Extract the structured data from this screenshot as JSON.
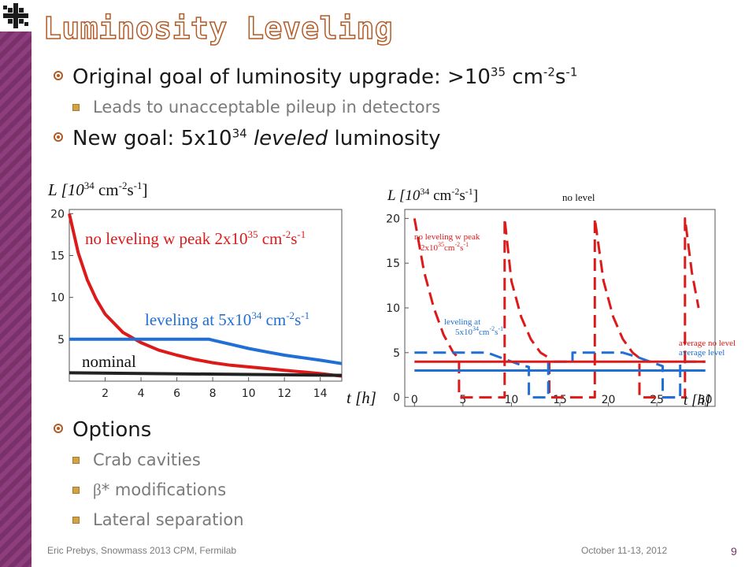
{
  "slide": {
    "title": "Luminosity Leveling",
    "page_number": "9",
    "footer_left": "Eric Prebys, Snowmass 2013 CPM, Fermilab",
    "footer_date": "October 11-13, 2012"
  },
  "bullets": {
    "b1": {
      "pre": "Original goal of luminosity upgrade: >10",
      "sup1": "35",
      "mid": " cm",
      "sup2": "-2",
      "mid2": "s",
      "sup3": "-1"
    },
    "b1_sub": "Leads to unacceptable pileup in detectors",
    "b2": {
      "pre": "New goal: 5x10",
      "sup": "34",
      "em": "leveled",
      "post": " luminosity"
    }
  },
  "options": {
    "heading": "Options",
    "items": [
      "Crab cavities",
      "* modifications",
      "Lateral separation"
    ],
    "beta_symbol": "β"
  },
  "colors": {
    "red": "#dd1a1a",
    "blue": "#1f6fd6",
    "black": "#222222",
    "accent": "#b35a25",
    "sidebar": "#7a3069"
  },
  "chart_data": [
    {
      "type": "line",
      "ylabel": {
        "pre": "L [10",
        "sup1": "34",
        "mid": " cm",
        "sup2": "-2",
        "mid2": "s",
        "sup3": "-1",
        "post": "]"
      },
      "xlabel": "t [h]",
      "xlim": [
        0,
        15.2
      ],
      "ylim": [
        0,
        20.5
      ],
      "xticks": [
        2,
        4,
        6,
        8,
        10,
        12,
        14
      ],
      "yticks": [
        5,
        10,
        15,
        20
      ],
      "series": [
        {
          "name": "no leveling w peak 2x10^35 cm^-2s^-1",
          "color": "#dd1a1a",
          "x": [
            0,
            0.5,
            1,
            1.5,
            2,
            3,
            4,
            5,
            6,
            7,
            8,
            9,
            10,
            11,
            12,
            13,
            14,
            15.2
          ],
          "y": [
            20,
            15.3,
            12.1,
            9.8,
            8.0,
            5.8,
            4.6,
            3.7,
            3.1,
            2.6,
            2.2,
            1.9,
            1.7,
            1.5,
            1.3,
            1.1,
            0.9,
            0.6
          ]
        },
        {
          "name": "leveling at 5x10^34 cm^-2s^-1",
          "color": "#1f6fd6",
          "x": [
            0,
            7.8,
            8,
            9,
            10,
            11,
            12,
            13,
            14,
            15.2
          ],
          "y": [
            5,
            5,
            4.9,
            4.4,
            3.9,
            3.5,
            3.1,
            2.8,
            2.5,
            2.1
          ]
        },
        {
          "name": "nominal",
          "color": "#222222",
          "x": [
            0,
            15.2
          ],
          "y": [
            1.0,
            0.7
          ]
        }
      ],
      "annotations": {
        "red": {
          "pre": "no leveling w peak 2x10",
          "sup": "35",
          "post": " cm",
          "sup2": "-2",
          "post2": "s",
          "sup3": "-1"
        },
        "blue": {
          "pre": "leveling at 5x10",
          "sup": "34",
          "post": " cm",
          "sup2": "-2",
          "post2": "s",
          "sup3": "-1"
        },
        "black": "nominal"
      }
    },
    {
      "type": "line",
      "ylabel": {
        "pre": "L [10",
        "sup1": "34",
        "mid": " cm",
        "sup2": "-2",
        "mid2": "s",
        "sup3": "-1",
        "post": "]"
      },
      "xlabel": "t [h]",
      "xlim": [
        -1,
        31
      ],
      "ylim": [
        -1,
        21
      ],
      "xticks": [
        0,
        5,
        10,
        15,
        20,
        25,
        30
      ],
      "yticks": [
        0,
        5,
        10,
        15,
        20
      ],
      "top_label": "no level",
      "series": [
        {
          "name": "no leveling w peak",
          "color": "#dd1a1a",
          "dashed": true,
          "x": [
            0,
            1,
            2,
            3,
            4,
            4.6,
            4.6,
            9.3,
            9.3,
            10,
            11,
            12,
            13,
            13.9,
            13.9,
            18.6,
            18.6,
            19.5,
            20.5,
            21.5,
            22.5,
            23.2,
            23.2,
            27.9,
            27.9,
            28.6,
            29.3
          ],
          "y": [
            20,
            14,
            10,
            7,
            5,
            4.4,
            0,
            0,
            20,
            13,
            9,
            6.5,
            5,
            4.4,
            0,
            0,
            20,
            13,
            9,
            6.5,
            5,
            4.4,
            0,
            0,
            20,
            14,
            10
          ]
        },
        {
          "name": "leveling at 5x10^34 cm^-2s^-1",
          "color": "#1f6fd6",
          "dashed": true,
          "x": [
            0,
            7.5,
            9,
            11,
            11.8,
            11.8,
            13,
            13.8,
            13.8,
            16.3,
            16.3,
            21.5,
            23,
            24.8,
            25.6,
            25.6,
            27.4,
            27.4,
            30
          ],
          "y": [
            5,
            5,
            4.4,
            3.6,
            3.4,
            0,
            0,
            0,
            4,
            4,
            5,
            5,
            4.5,
            3.8,
            3.5,
            0,
            0,
            4,
            4
          ]
        },
        {
          "name": "average no level",
          "color": "#dd1a1a",
          "x": [
            0,
            30
          ],
          "y": [
            4,
            4
          ]
        },
        {
          "name": "average level",
          "color": "#1f6fd6",
          "x": [
            0,
            30
          ],
          "y": [
            3,
            3
          ]
        }
      ],
      "annotations": {
        "red": {
          "line1": "no leveling w peak",
          "pre": "2x10",
          "sup": "35",
          "post": "cm",
          "sup2": "-2",
          "post2": "s",
          "sup3": "-1"
        },
        "blue": {
          "line1": "leveling at",
          "pre": "5x10",
          "sup": "34",
          "post": "cm",
          "sup2": "-2",
          "post2": "s",
          "sup3": "-1"
        },
        "avg_red": "average no level",
        "avg_blue": "average level"
      }
    }
  ]
}
